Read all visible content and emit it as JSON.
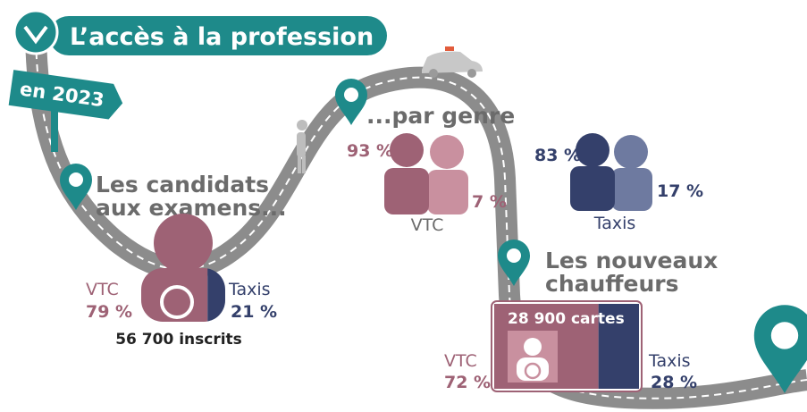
{
  "header": {
    "title": "L’accès à la profession",
    "sign": "en 2023"
  },
  "candidates": {
    "title_lines": [
      "Les candidats",
      "aux examens..."
    ],
    "vtc": {
      "label": "VTC",
      "share": {
        "value": 79,
        "label": "79 %"
      }
    },
    "taxis": {
      "label": "Taxis",
      "share": {
        "value": 21,
        "label": "21 %"
      }
    },
    "total": "56 700 inscrits"
  },
  "gender": {
    "title": "...par genre",
    "vtc": {
      "label": "VTC",
      "men": "93 %",
      "women": "7 %"
    },
    "taxis": {
      "label": "Taxis",
      "men": "83 %",
      "women": "17 %"
    }
  },
  "new_drivers": {
    "title_lines": [
      "Les nouveaux",
      "chauffeurs"
    ],
    "total": "28 900 cartes",
    "vtc": {
      "label": "VTC",
      "share": {
        "value": 72,
        "label": "72 %"
      }
    },
    "taxis": {
      "label": "Taxis",
      "share": {
        "value": 28,
        "label": "28 %"
      }
    }
  }
}
